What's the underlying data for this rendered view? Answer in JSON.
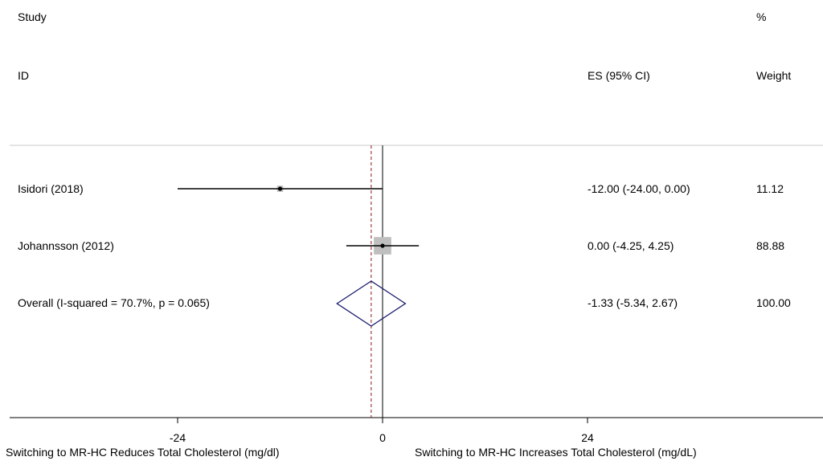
{
  "header": {
    "study": "Study",
    "id": "ID",
    "pct": "%",
    "es_label": "ES (95% CI)",
    "weight_label": "Weight"
  },
  "chart_data": {
    "type": "forest",
    "studies": [
      {
        "label": "Isidori (2018)",
        "es": -12.0,
        "lower": -24.0,
        "upper": 0.0,
        "weight": 11.12,
        "es_text": "-12.00 (-24.00, 0.00)",
        "weight_text": "11.12"
      },
      {
        "label": "Johannsson  (2012)",
        "es": 0.0,
        "lower": -4.25,
        "upper": 4.25,
        "weight": 88.88,
        "es_text": "0.00 (-4.25, 4.25)",
        "weight_text": "88.88"
      }
    ],
    "overall": {
      "label": "Overall  (I-squared = 70.7%, p = 0.065)",
      "es": -1.33,
      "lower": -5.34,
      "upper": 2.67,
      "weight": 100.0,
      "es_text": "-1.33 (-5.34, 2.67)",
      "weight_text": "100.00"
    },
    "xticks": [
      -24,
      0,
      24
    ],
    "xtick_labels": [
      "-24",
      "0",
      "24"
    ],
    "xlim": [
      -43,
      51
    ],
    "null_line": 0,
    "xlabel_left": "Switching to MR-HC Reduces Total Cholesterol (mg/dl)",
    "xlabel_right": "Switching to MR-HC Increases Total Cholesterol (mg/dL)",
    "colors": {
      "marker_box": "#bfbfbf",
      "diamond": "#1a1a6e",
      "overall_line": "#8b1a1a"
    }
  }
}
